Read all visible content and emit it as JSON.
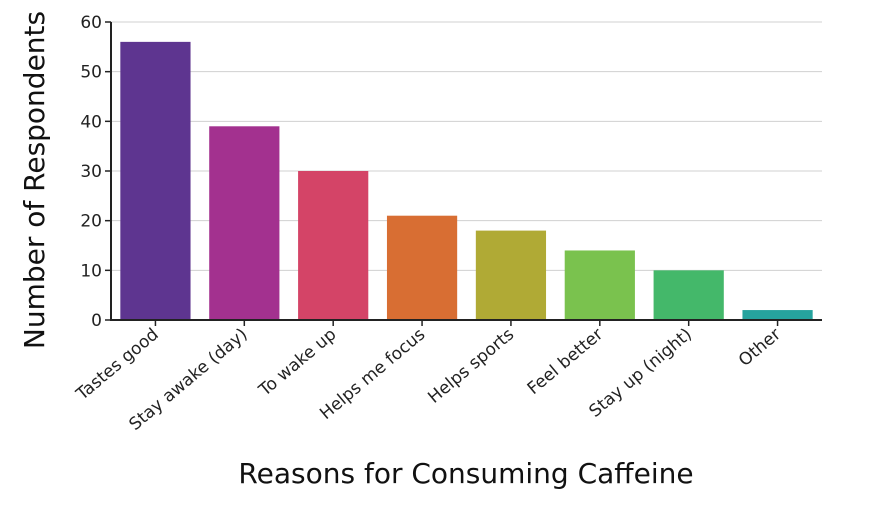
{
  "chart_data": {
    "type": "bar",
    "title": "",
    "xlabel": "Reasons for Consuming Caffeine",
    "ylabel": "Number of Respondents",
    "ylim": [
      0,
      60
    ],
    "yticks": [
      0,
      10,
      20,
      30,
      40,
      50,
      60
    ],
    "grid": true,
    "categories": [
      "Tastes good",
      "Stay awake (day)",
      "To wake up",
      "Helps me focus",
      "Helps sports",
      "Feel better",
      "Stay up (night)",
      "Other"
    ],
    "values": [
      56,
      39,
      30,
      21,
      18,
      14,
      10,
      2
    ],
    "colors": [
      "#5e3590",
      "#a3318f",
      "#d44467",
      "#d86e33",
      "#b0aa35",
      "#7ac24e",
      "#44b86a",
      "#26a39e"
    ]
  }
}
